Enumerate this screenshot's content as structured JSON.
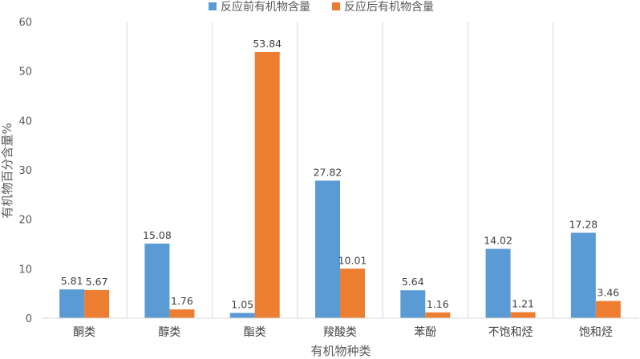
{
  "chart_data": {
    "type": "bar",
    "title": "",
    "xlabel": "有机物种类",
    "ylabel": "有机物百分含量%",
    "ylim": [
      0,
      60
    ],
    "yticks": [
      0,
      10,
      20,
      30,
      40,
      50,
      60
    ],
    "grid": "vertical separators between categories",
    "legend_position": "top",
    "categories": [
      "酮类",
      "醇类",
      "酯类",
      "羧酸类",
      "苯酚",
      "不饱和烃",
      "饱和烃"
    ],
    "series": [
      {
        "name": "反应前有机物含量",
        "color": "#5B9BD5",
        "values": [
          5.81,
          15.08,
          1.05,
          27.82,
          5.64,
          14.02,
          17.28
        ]
      },
      {
        "name": "反应后有机物含量",
        "color": "#ED7D31",
        "values": [
          5.67,
          1.76,
          53.84,
          10.01,
          1.16,
          1.21,
          3.46
        ]
      }
    ]
  }
}
